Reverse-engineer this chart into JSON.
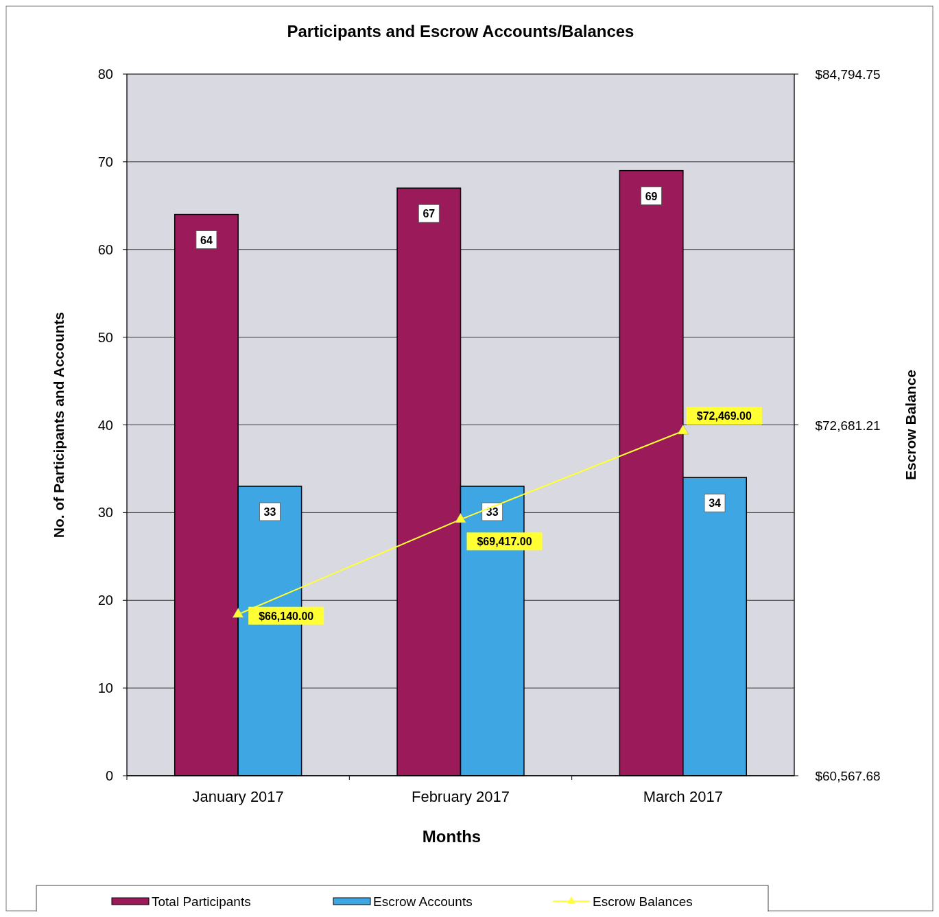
{
  "chart_data": {
    "type": "bar",
    "title": "Participants and Escrow Accounts/Balances",
    "xlabel": "Months",
    "ylabel": "No. of Participants and Accounts",
    "y2label": "Escrow Balance",
    "categories": [
      "January 2017",
      "February 2017",
      "March 2017"
    ],
    "series": [
      {
        "name": "Total Participants",
        "color": "#9b1b5a",
        "values": [
          64,
          67,
          69
        ]
      },
      {
        "name": "Escrow Accounts",
        "color": "#3fa6e4",
        "values": [
          33,
          33,
          34
        ]
      },
      {
        "name": "Escrow Balances",
        "type": "line",
        "axis": "y2",
        "color": "#ffff33",
        "values": [
          66140,
          69417,
          72469
        ],
        "value_labels": [
          "$66,140.00",
          "$69,417.00",
          "$72,469.00"
        ]
      }
    ],
    "data_labels": true,
    "ylim": [
      0,
      80
    ],
    "yticks": [
      0,
      10,
      20,
      30,
      40,
      50,
      60,
      70,
      80
    ],
    "y2lim": [
      60567.68,
      84794.75
    ],
    "y2ticks": [
      {
        "value": 60567.68,
        "label": "$60,567.68"
      },
      {
        "value": 72681.21,
        "label": "$72,681.21"
      },
      {
        "value": 84794.75,
        "label": "$84,794.75"
      }
    ],
    "grid": "y",
    "legend": "bottom",
    "marker": "triangle",
    "line_style": "solid"
  }
}
